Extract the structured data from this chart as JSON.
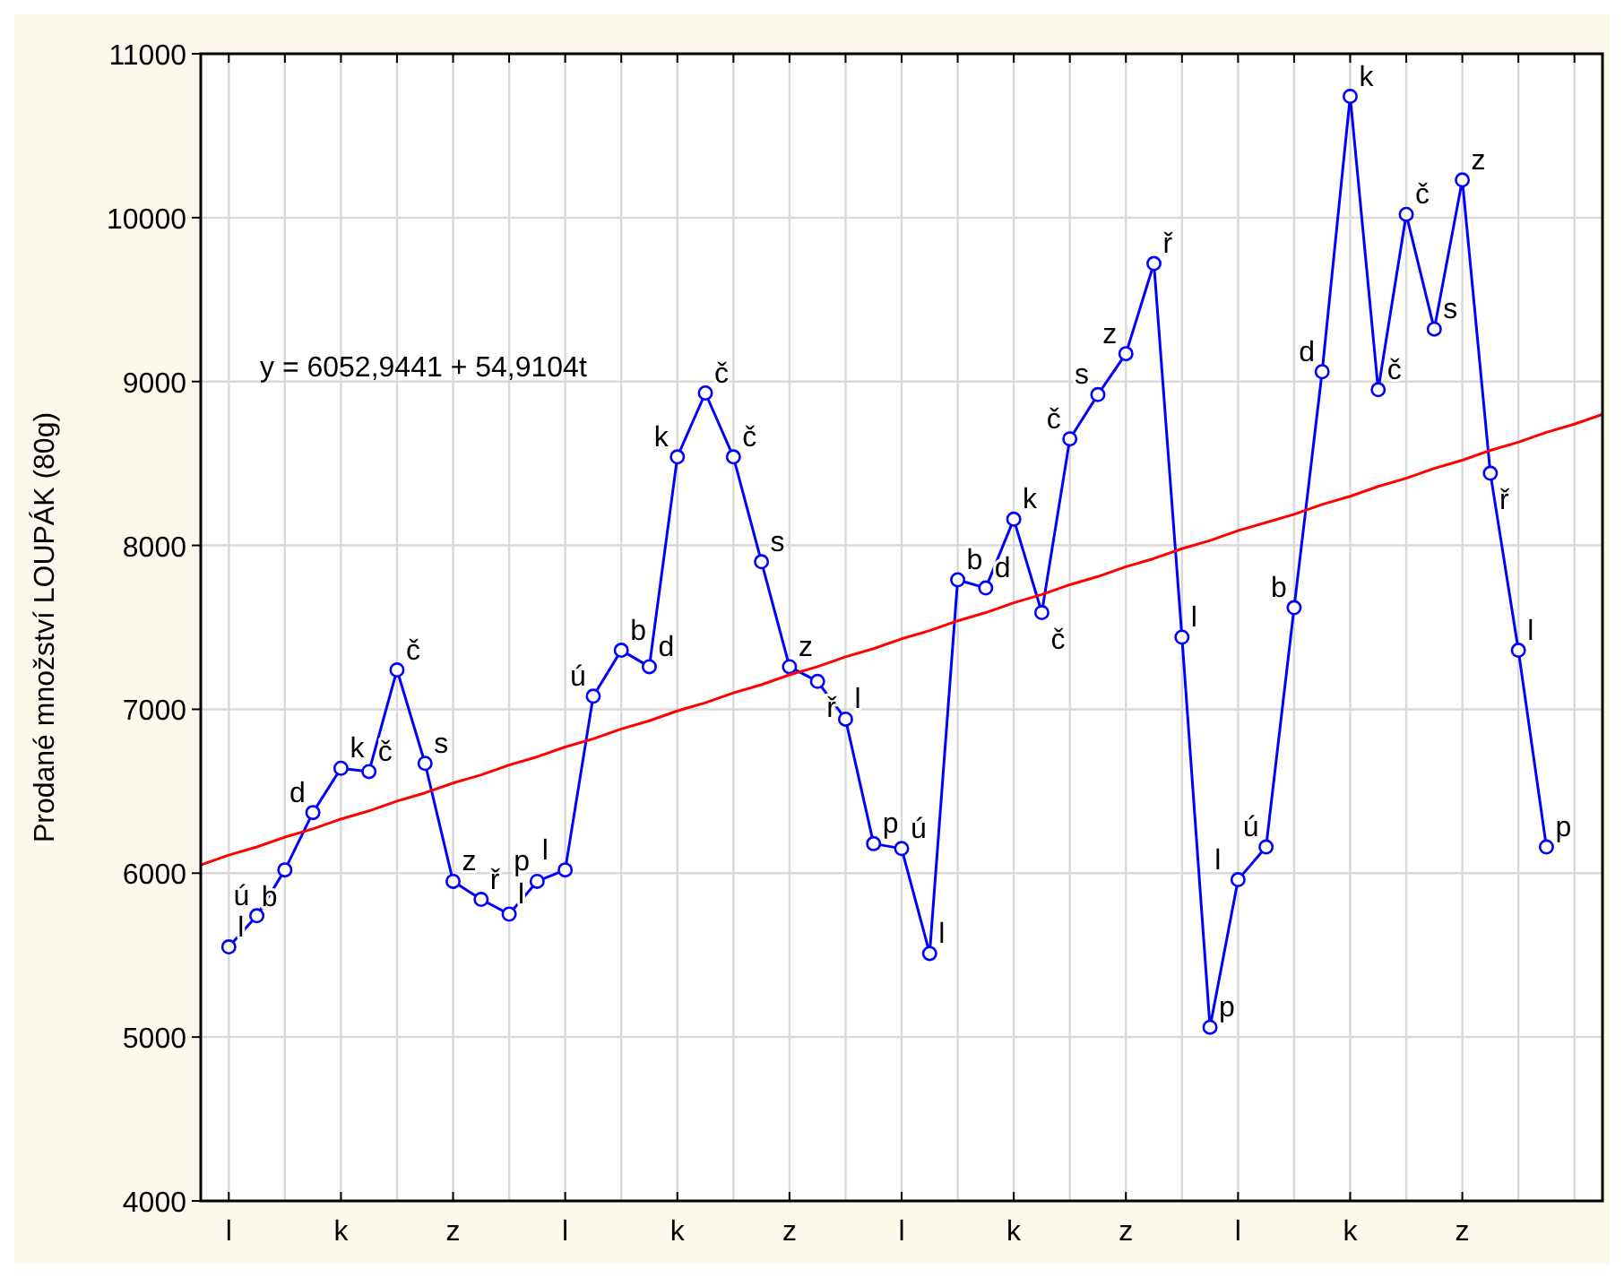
{
  "chart_data": {
    "type": "line",
    "ylabel": "Prodané množství LOUPÁK (80g)",
    "categories": [
      null,
      "l",
      null,
      null,
      null,
      "k",
      null,
      null,
      null,
      "z",
      null,
      null,
      null,
      "l",
      null,
      null,
      null,
      "k",
      null,
      null,
      null,
      "z",
      null,
      null,
      null,
      "l",
      null,
      null,
      null,
      "k",
      null,
      null,
      null,
      "z",
      null,
      null,
      null,
      "l",
      null,
      null,
      null,
      "k",
      null,
      null,
      null,
      "z",
      null,
      null,
      null,
      null,
      null
    ],
    "ylim": [
      4000,
      11000
    ],
    "yticks": [
      4000,
      5000,
      6000,
      7000,
      8000,
      9000,
      10000,
      11000
    ],
    "grid": true,
    "marker": "circle",
    "line_style": "solid",
    "series": [
      {
        "color": "#0000ff",
        "values": [
          null,
          5550,
          5740,
          6020,
          6370,
          6640,
          6620,
          7240,
          6670,
          5950,
          5840,
          5750,
          5950,
          6020,
          7080,
          7360,
          7260,
          8540,
          8930,
          8540,
          7900,
          7260,
          7170,
          6940,
          6180,
          6150,
          5510,
          7790,
          7740,
          8160,
          7590,
          8650,
          8920,
          9170,
          9720,
          7440,
          5060,
          5960,
          6160,
          7620,
          9060,
          10740,
          8950,
          10020,
          9320,
          10230,
          8440,
          7360,
          6160,
          null,
          null
        ],
        "value_labels": [
          null,
          "l",
          "ú",
          "b",
          "d",
          "k",
          "č",
          "č",
          "s",
          "z",
          "ř",
          "l",
          "p",
          "l",
          "ú",
          "b",
          "d",
          "k",
          "č",
          "č",
          "s",
          "z",
          "ř",
          "l",
          "p",
          "ú",
          "l",
          "b",
          "d",
          "k",
          "č",
          "č",
          "s",
          "z",
          "ř",
          "l",
          "p",
          "l",
          "ú",
          "b",
          "d",
          "k",
          "č",
          "č",
          "s",
          "z",
          "ř",
          "l",
          "p",
          null,
          null
        ]
      },
      {
        "color": "#ff0000",
        "marker": "none",
        "values": [
          6050,
          6110,
          6160,
          6220,
          6270,
          6330,
          6380,
          6440,
          6490,
          6550,
          6600,
          6660,
          6710,
          6770,
          6820,
          6880,
          6930,
          6990,
          7040,
          7100,
          7150,
          7210,
          7260,
          7320,
          7370,
          7430,
          7480,
          7540,
          7590,
          7650,
          7700,
          7760,
          7810,
          7870,
          7920,
          7980,
          8030,
          8090,
          8140,
          8190,
          8250,
          8300,
          8360,
          8410,
          8470,
          8520,
          8580,
          8630,
          8690,
          8740,
          8800
        ]
      }
    ],
    "annotations": [
      "y = 6052,9441 + 54,9104t"
    ]
  }
}
